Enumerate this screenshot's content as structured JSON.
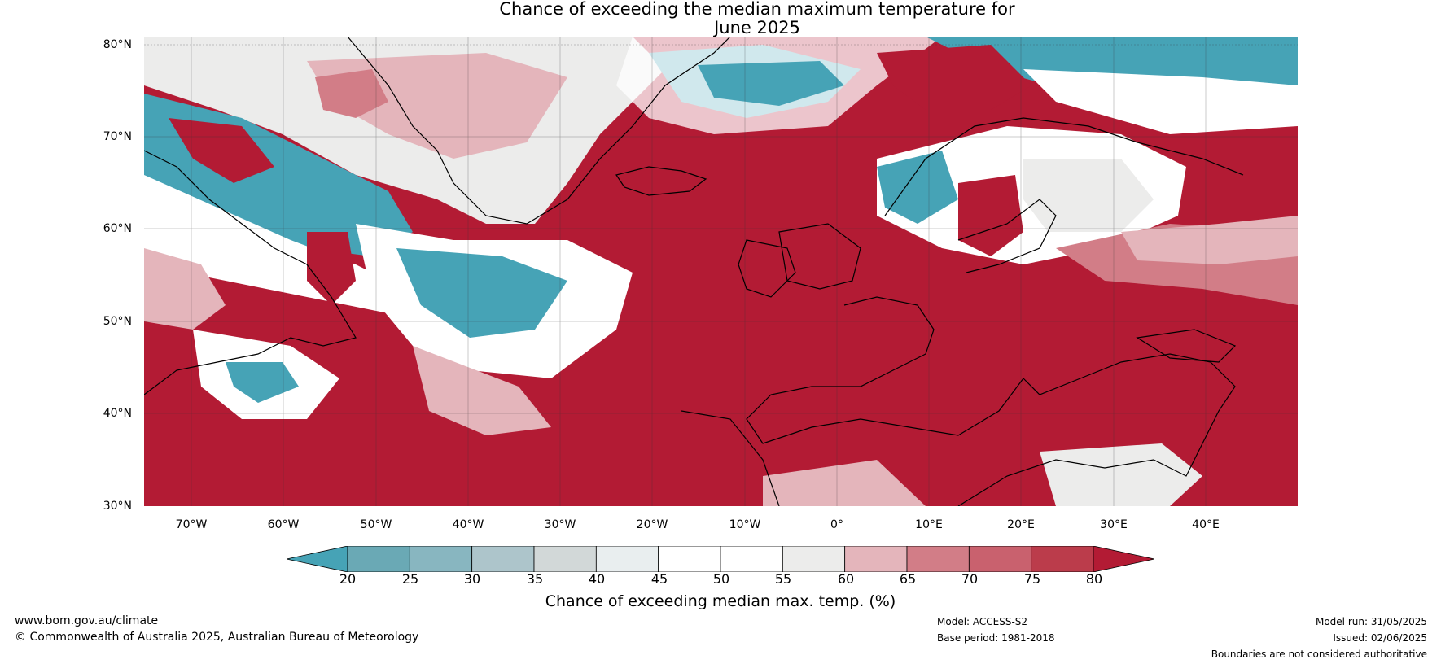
{
  "title": {
    "line1": "Chance of exceeding the median maximum temperature for",
    "line2": "June 2025"
  },
  "map": {
    "lat_labels": [
      "80°N",
      "70°N",
      "60°N",
      "50°N",
      "40°N",
      "30°N"
    ],
    "lon_labels": [
      "70°W",
      "60°W",
      "50°W",
      "40°W",
      "30°W",
      "20°W",
      "10°W",
      "0°",
      "10°E",
      "20°E",
      "30°E",
      "40°E"
    ]
  },
  "legend": {
    "ticks": [
      "20",
      "25",
      "30",
      "35",
      "40",
      "45",
      "50",
      "55",
      "60",
      "65",
      "70",
      "75",
      "80"
    ],
    "colors": [
      "#46a3b6",
      "#6aa9b5",
      "#88b6c0",
      "#adc5cb",
      "#d2d8d8",
      "#e9eeef",
      "#ffffff",
      "#ffffff",
      "#ececeb",
      "#e4b5bb",
      "#d27d87",
      "#c9616e",
      "#bb3c4b",
      "#b31b34"
    ],
    "label": "Chance of exceeding median max. temp. (%)"
  },
  "footer": {
    "website": "www.bom.gov.au/climate",
    "copyright": "© Commonwealth of Australia 2025, Australian Bureau of Meteorology",
    "model": "Model: ACCESS-S2",
    "base_period": "Base period: 1981-2018",
    "model_run": "Model run: 31/05/2025",
    "issued": "Issued: 02/06/2025",
    "disclaimer": "Boundaries are not considered authoritative"
  }
}
